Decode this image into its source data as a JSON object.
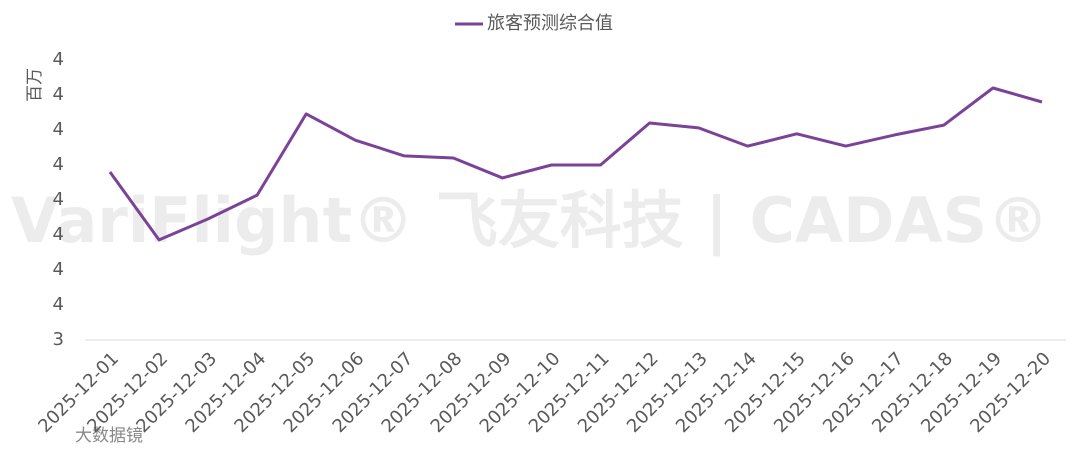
{
  "chart_data": {
    "type": "line",
    "y_label": "百万",
    "categories": [
      "2025-12-01",
      "2025-12-02",
      "2025-12-03",
      "2025-12-04",
      "2025-12-05",
      "2025-12-06",
      "2025-12-07",
      "2025-12-08",
      "2025-12-09",
      "2025-12-10",
      "2025-12-11",
      "2025-12-12",
      "2025-12-13",
      "2025-12-14",
      "2025-12-15",
      "2025-12-16",
      "2025-12-17",
      "2025-12-18",
      "2025-12-19",
      "2025-12-20"
    ],
    "series": [
      {
        "name": "旅客预测综合值",
        "color": "#7b4397",
        "values": [
          3.88,
          3.686,
          3.746,
          3.814,
          4.046,
          3.971,
          3.926,
          3.92,
          3.863,
          3.9,
          3.9,
          4.02,
          4.006,
          3.954,
          3.989,
          3.954,
          3.986,
          4.014,
          4.12,
          4.08
        ]
      }
    ],
    "ylim": [
      3.4,
      4.2
    ],
    "yticks": [
      {
        "value": 3.4,
        "label": "3"
      },
      {
        "value": 3.5,
        "label": "4"
      },
      {
        "value": 3.6,
        "label": "4"
      },
      {
        "value": 3.7,
        "label": "4"
      },
      {
        "value": 3.8,
        "label": "4"
      },
      {
        "value": 3.9,
        "label": "4"
      },
      {
        "value": 4.0,
        "label": "4"
      },
      {
        "value": 4.1,
        "label": "4"
      },
      {
        "value": 4.2,
        "label": "4"
      }
    ],
    "legend": "top",
    "watermark": [
      "VariFlight® 飞友科技 | CADAS®",
      "大数据镜"
    ]
  }
}
